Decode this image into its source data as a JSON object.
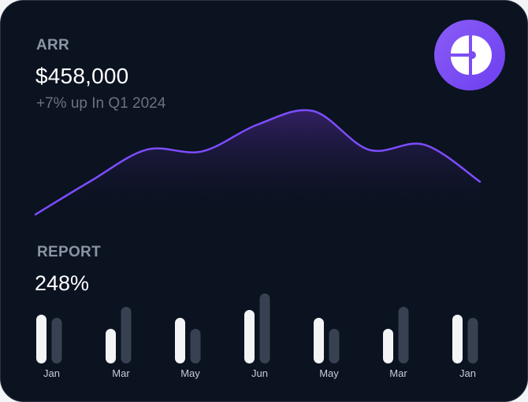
{
  "arr": {
    "label": "ARR",
    "value": "$458,000",
    "subtitle": "+7% up In Q1 2024"
  },
  "logo": {
    "icon": "pie-chart-icon",
    "accent": "#7c4dff"
  },
  "report": {
    "label": "REPORT",
    "value": "248%"
  },
  "colors": {
    "card_background": "#0b1220",
    "line": "#7c4dff",
    "bar_primary": "#f3f4f6",
    "bar_secondary": "#374151"
  },
  "chart_data": [
    {
      "type": "area",
      "series": [
        {
          "values": [
            5,
            45,
            82,
            80,
            112,
            128,
            82,
            88,
            44
          ]
        }
      ]
    },
    {
      "type": "bar",
      "categories": [
        "Jan",
        "Mar",
        "May",
        "Jun",
        "May",
        "Mar",
        "Jan"
      ],
      "series": [
        {
          "values": [
            62,
            44,
            58,
            68,
            58,
            44,
            62
          ]
        },
        {
          "values": [
            58,
            72,
            44,
            89,
            44,
            72,
            58
          ]
        }
      ]
    }
  ]
}
